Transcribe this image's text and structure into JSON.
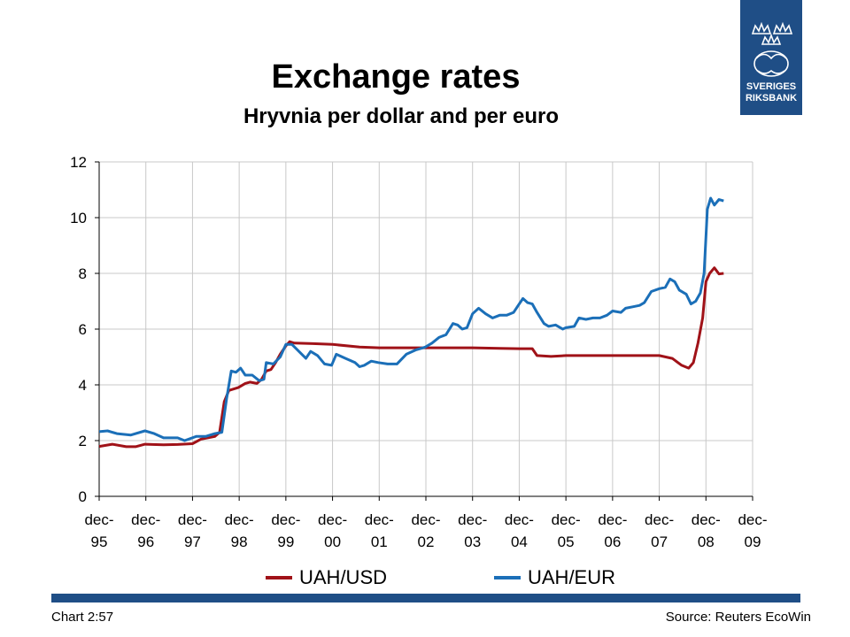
{
  "header": {
    "title": "Exchange rates",
    "subtitle": "Hryvnia per dollar and per euro"
  },
  "logo": {
    "line1": "SVERIGES",
    "line2": "RIKSBANK",
    "icon": "crown-emblem-icon"
  },
  "footer": {
    "chart_number": "Chart 2:57",
    "source": "Source: Reuters EcoWin"
  },
  "colors": {
    "usd_series": "#a01218",
    "eur_series": "#1b6fb8",
    "brand_blue": "#1f4e86",
    "grid": "#c8c8c8"
  },
  "chart_data": {
    "type": "line",
    "xlabel": "",
    "ylabel": "",
    "ylim": [
      0,
      12
    ],
    "xlim": [
      1995.92,
      2009.92
    ],
    "grid": true,
    "legend": "bottom",
    "y_ticks": [
      "0",
      "2",
      "4",
      "6",
      "8",
      "10",
      "12"
    ],
    "x_ticks": [
      {
        "line1": "dec-",
        "line2": "95"
      },
      {
        "line1": "dec-",
        "line2": "96"
      },
      {
        "line1": "dec-",
        "line2": "97"
      },
      {
        "line1": "dec-",
        "line2": "98"
      },
      {
        "line1": "dec-",
        "line2": "99"
      },
      {
        "line1": "dec-",
        "line2": "00"
      },
      {
        "line1": "dec-",
        "line2": "01"
      },
      {
        "line1": "dec-",
        "line2": "02"
      },
      {
        "line1": "dec-",
        "line2": "03"
      },
      {
        "line1": "dec-",
        "line2": "04"
      },
      {
        "line1": "dec-",
        "line2": "05"
      },
      {
        "line1": "dec-",
        "line2": "06"
      },
      {
        "line1": "dec-",
        "line2": "07"
      },
      {
        "line1": "dec-",
        "line2": "08"
      },
      {
        "line1": "dec-",
        "line2": "09"
      }
    ],
    "series": [
      {
        "name": "UAH/USD",
        "points": [
          [
            1995.92,
            1.79
          ],
          [
            1996.2,
            1.87
          ],
          [
            1996.5,
            1.78
          ],
          [
            1996.7,
            1.78
          ],
          [
            1996.9,
            1.87
          ],
          [
            1997.3,
            1.85
          ],
          [
            1997.6,
            1.86
          ],
          [
            1997.92,
            1.89
          ],
          [
            1998.1,
            2.05
          ],
          [
            1998.4,
            2.15
          ],
          [
            1998.5,
            2.3
          ],
          [
            1998.6,
            3.4
          ],
          [
            1998.7,
            3.8
          ],
          [
            1998.9,
            3.9
          ],
          [
            1999.05,
            4.05
          ],
          [
            1999.15,
            4.1
          ],
          [
            1999.3,
            4.05
          ],
          [
            1999.4,
            4.2
          ],
          [
            1999.5,
            4.5
          ],
          [
            1999.6,
            4.55
          ],
          [
            1999.7,
            4.8
          ],
          [
            1999.8,
            5.1
          ],
          [
            1999.92,
            5.4
          ],
          [
            2000.0,
            5.55
          ],
          [
            2000.1,
            5.5
          ],
          [
            2000.5,
            5.48
          ],
          [
            2000.92,
            5.45
          ],
          [
            2001.5,
            5.36
          ],
          [
            2001.92,
            5.33
          ],
          [
            2002.5,
            5.33
          ],
          [
            2002.92,
            5.33
          ],
          [
            2003.5,
            5.33
          ],
          [
            2003.92,
            5.33
          ],
          [
            2004.5,
            5.31
          ],
          [
            2004.92,
            5.3
          ],
          [
            2005.2,
            5.3
          ],
          [
            2005.3,
            5.05
          ],
          [
            2005.6,
            5.02
          ],
          [
            2005.92,
            5.05
          ],
          [
            2006.5,
            5.05
          ],
          [
            2006.92,
            5.05
          ],
          [
            2007.5,
            5.05
          ],
          [
            2007.92,
            5.05
          ],
          [
            2008.2,
            4.95
          ],
          [
            2008.4,
            4.7
          ],
          [
            2008.55,
            4.6
          ],
          [
            2008.65,
            4.8
          ],
          [
            2008.75,
            5.5
          ],
          [
            2008.85,
            6.4
          ],
          [
            2008.92,
            7.7
          ],
          [
            2009.0,
            8.0
          ],
          [
            2009.1,
            8.2
          ],
          [
            2009.2,
            7.98
          ],
          [
            2009.3,
            8.0
          ]
        ]
      },
      {
        "name": "UAH/EUR",
        "points": [
          [
            1995.92,
            2.32
          ],
          [
            1996.1,
            2.35
          ],
          [
            1996.3,
            2.25
          ],
          [
            1996.6,
            2.2
          ],
          [
            1996.9,
            2.35
          ],
          [
            1997.1,
            2.25
          ],
          [
            1997.3,
            2.1
          ],
          [
            1997.6,
            2.1
          ],
          [
            1997.75,
            2.0
          ],
          [
            1998.0,
            2.15
          ],
          [
            1998.2,
            2.15
          ],
          [
            1998.4,
            2.25
          ],
          [
            1998.55,
            2.3
          ],
          [
            1998.65,
            3.5
          ],
          [
            1998.75,
            4.5
          ],
          [
            1998.85,
            4.45
          ],
          [
            1998.95,
            4.6
          ],
          [
            1999.05,
            4.35
          ],
          [
            1999.2,
            4.35
          ],
          [
            1999.35,
            4.15
          ],
          [
            1999.45,
            4.2
          ],
          [
            1999.5,
            4.8
          ],
          [
            1999.65,
            4.75
          ],
          [
            1999.8,
            5.0
          ],
          [
            1999.92,
            5.45
          ],
          [
            2000.05,
            5.45
          ],
          [
            2000.2,
            5.2
          ],
          [
            2000.35,
            4.95
          ],
          [
            2000.45,
            5.2
          ],
          [
            2000.6,
            5.05
          ],
          [
            2000.75,
            4.75
          ],
          [
            2000.9,
            4.7
          ],
          [
            2001.0,
            5.1
          ],
          [
            2001.2,
            4.95
          ],
          [
            2001.4,
            4.8
          ],
          [
            2001.5,
            4.65
          ],
          [
            2001.6,
            4.7
          ],
          [
            2001.75,
            4.85
          ],
          [
            2001.9,
            4.8
          ],
          [
            2002.1,
            4.75
          ],
          [
            2002.3,
            4.75
          ],
          [
            2002.5,
            5.1
          ],
          [
            2002.7,
            5.25
          ],
          [
            2002.9,
            5.35
          ],
          [
            2003.05,
            5.5
          ],
          [
            2003.2,
            5.7
          ],
          [
            2003.35,
            5.8
          ],
          [
            2003.5,
            6.2
          ],
          [
            2003.6,
            6.15
          ],
          [
            2003.7,
            6.0
          ],
          [
            2003.8,
            6.05
          ],
          [
            2003.92,
            6.55
          ],
          [
            2004.05,
            6.75
          ],
          [
            2004.2,
            6.55
          ],
          [
            2004.35,
            6.4
          ],
          [
            2004.5,
            6.5
          ],
          [
            2004.65,
            6.5
          ],
          [
            2004.8,
            6.6
          ],
          [
            2004.92,
            6.9
          ],
          [
            2005.0,
            7.1
          ],
          [
            2005.1,
            6.95
          ],
          [
            2005.2,
            6.9
          ],
          [
            2005.3,
            6.6
          ],
          [
            2005.45,
            6.2
          ],
          [
            2005.55,
            6.1
          ],
          [
            2005.7,
            6.15
          ],
          [
            2005.85,
            6.0
          ],
          [
            2005.92,
            6.05
          ],
          [
            2006.1,
            6.1
          ],
          [
            2006.2,
            6.4
          ],
          [
            2006.35,
            6.35
          ],
          [
            2006.5,
            6.4
          ],
          [
            2006.65,
            6.4
          ],
          [
            2006.8,
            6.5
          ],
          [
            2006.92,
            6.65
          ],
          [
            2007.1,
            6.6
          ],
          [
            2007.2,
            6.75
          ],
          [
            2007.35,
            6.8
          ],
          [
            2007.5,
            6.85
          ],
          [
            2007.6,
            6.95
          ],
          [
            2007.75,
            7.35
          ],
          [
            2007.92,
            7.45
          ],
          [
            2008.05,
            7.5
          ],
          [
            2008.15,
            7.8
          ],
          [
            2008.25,
            7.7
          ],
          [
            2008.35,
            7.4
          ],
          [
            2008.5,
            7.25
          ],
          [
            2008.6,
            6.9
          ],
          [
            2008.7,
            7.0
          ],
          [
            2008.8,
            7.3
          ],
          [
            2008.88,
            8.0
          ],
          [
            2008.95,
            10.3
          ],
          [
            2009.02,
            10.7
          ],
          [
            2009.1,
            10.45
          ],
          [
            2009.2,
            10.65
          ],
          [
            2009.3,
            10.6
          ]
        ]
      }
    ]
  }
}
